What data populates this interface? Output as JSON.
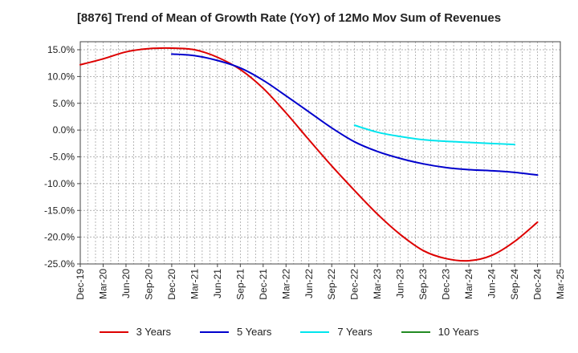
{
  "chart_data": {
    "type": "line",
    "title": "[8876]  Trend of Mean of Growth Rate (YoY) of 12Mo Mov Sum of Revenues",
    "xlabel": "",
    "ylabel": "",
    "ylim": [
      -25,
      16.5
    ],
    "y_ticks": [
      15,
      10,
      5,
      0,
      -5,
      -10,
      -15,
      -20,
      -25
    ],
    "y_tick_labels": [
      "15.0%",
      "10.0%",
      "5.0%",
      "0.0%",
      "-5.0%",
      "-10.0%",
      "-15.0%",
      "-20.0%",
      "-25.0%"
    ],
    "x_ticks": [
      0,
      3,
      6,
      9,
      12,
      15,
      18,
      21,
      24,
      27,
      30,
      33,
      36,
      39,
      42,
      45,
      48,
      51,
      54,
      57,
      60,
      63
    ],
    "x_tick_labels": [
      "Dec-19",
      "Mar-20",
      "Jun-20",
      "Sep-20",
      "Dec-20",
      "Mar-21",
      "Jun-21",
      "Sep-21",
      "Dec-21",
      "Mar-22",
      "Jun-22",
      "Sep-22",
      "Dec-22",
      "Mar-23",
      "Jun-23",
      "Sep-23",
      "Dec-23",
      "Mar-24",
      "Jun-24",
      "Sep-24",
      "Dec-24",
      "Mar-25"
    ],
    "x_range": [
      0,
      63
    ],
    "grid": true,
    "legend_position": "bottom",
    "series": [
      {
        "name": "3 Years",
        "color": "#dd0000",
        "points": [
          [
            0,
            12.2
          ],
          [
            3,
            13.3
          ],
          [
            6,
            14.6
          ],
          [
            9,
            15.2
          ],
          [
            12,
            15.3
          ],
          [
            15,
            15.0
          ],
          [
            18,
            13.6
          ],
          [
            21,
            11.3
          ],
          [
            24,
            7.8
          ],
          [
            27,
            3.2
          ],
          [
            30,
            -1.8
          ],
          [
            33,
            -6.7
          ],
          [
            36,
            -11.3
          ],
          [
            39,
            -15.7
          ],
          [
            42,
            -19.5
          ],
          [
            45,
            -22.5
          ],
          [
            48,
            -24.0
          ],
          [
            51,
            -24.4
          ],
          [
            54,
            -23.4
          ],
          [
            57,
            -20.8
          ],
          [
            60,
            -17.2
          ]
        ]
      },
      {
        "name": "5 Years",
        "color": "#0000cc",
        "points": [
          [
            12,
            14.2
          ],
          [
            15,
            13.9
          ],
          [
            18,
            13.0
          ],
          [
            21,
            11.6
          ],
          [
            24,
            9.3
          ],
          [
            27,
            6.4
          ],
          [
            30,
            3.4
          ],
          [
            33,
            0.4
          ],
          [
            36,
            -2.2
          ],
          [
            39,
            -4.0
          ],
          [
            42,
            -5.3
          ],
          [
            45,
            -6.3
          ],
          [
            48,
            -7.0
          ],
          [
            51,
            -7.4
          ],
          [
            54,
            -7.6
          ],
          [
            57,
            -7.9
          ],
          [
            60,
            -8.4
          ]
        ]
      },
      {
        "name": "7 Years",
        "color": "#00e5ee",
        "points": [
          [
            36,
            0.9
          ],
          [
            39,
            -0.4
          ],
          [
            42,
            -1.2
          ],
          [
            45,
            -1.8
          ],
          [
            48,
            -2.1
          ],
          [
            51,
            -2.3
          ],
          [
            54,
            -2.5
          ],
          [
            57,
            -2.7
          ]
        ]
      },
      {
        "name": "10 Years",
        "color": "#228b22",
        "points": []
      }
    ]
  }
}
